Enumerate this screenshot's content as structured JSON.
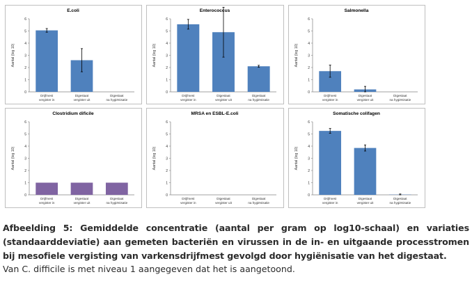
{
  "caption": {
    "main": "Afbeelding 5: Gemiddelde concentratie (aantal per gram op log10-schaal) en variaties (standaarddeviatie) aan gemeten bacteriën en virussen in de in- en uitgaande processtromen bij mesofiele vergisting van varkensdrijfmest gevolgd door hygiënisatie van het digestaat.",
    "note": "Van C. difficile is met niveau 1 aangegeven dat het is aangetoond."
  },
  "colors": {
    "bar_blue": "#4f81bd",
    "bar_purple": "#8064a2",
    "frame": "#bfbfbf",
    "axis": "#808080"
  },
  "chart_data": [
    {
      "type": "bar",
      "title": "E.coli",
      "ylabel": "Aantal (log 10)",
      "ylim": [
        0,
        6
      ],
      "yticks": [
        "0",
        "1",
        "2",
        "3",
        "4",
        "5",
        "6"
      ],
      "categories": [
        [
          "Drijfmest",
          "vergister in"
        ],
        [
          "Digestaat",
          "vergister uit"
        ],
        [
          "Digestaat",
          "na hygiënisatie"
        ]
      ],
      "values": [
        5.05,
        2.6,
        0
      ],
      "errors": [
        0.15,
        0.95,
        0
      ],
      "color": "#4f81bd"
    },
    {
      "type": "bar",
      "title": "Enterococcus",
      "ylabel": "Aantal (log 10)",
      "ylim": [
        0,
        6
      ],
      "yticks": [
        "0",
        "1",
        "2",
        "3",
        "4",
        "5",
        "6"
      ],
      "categories": [
        [
          "Drijfmest",
          "vergister in"
        ],
        [
          "Digestaat",
          "vergister uit"
        ],
        [
          "Digestaat",
          "na hygiënisatie"
        ]
      ],
      "values": [
        5.55,
        4.9,
        2.1
      ],
      "errors": [
        0.4,
        2.05,
        0.08
      ],
      "color": "#4f81bd"
    },
    {
      "type": "bar",
      "title": "Salmonella",
      "ylabel": "Aantal (log 10)",
      "ylim": [
        0,
        6
      ],
      "yticks": [
        "0",
        "1",
        "2",
        "3",
        "4",
        "5",
        "6"
      ],
      "categories": [
        [
          "Drijfmest",
          "vergister in"
        ],
        [
          "Digestaat",
          "vergister uit"
        ],
        [
          "Digestaat",
          "na hygiënisatie"
        ]
      ],
      "values": [
        1.7,
        0.2,
        0
      ],
      "errors": [
        0.5,
        0.25,
        0
      ],
      "color": "#4f81bd"
    },
    {
      "type": "bar",
      "title": "Clostridium dificile",
      "ylabel": "Aantal (log 10)",
      "ylim": [
        0,
        6
      ],
      "yticks": [
        "0",
        "1",
        "2",
        "3",
        "4",
        "5",
        "6"
      ],
      "categories": [
        [
          "Drijfmest",
          "vergister in"
        ],
        [
          "Digestaat",
          "vergister uit"
        ],
        [
          "Digestaat",
          "na hygiënisatie"
        ]
      ],
      "values": [
        1,
        1,
        1
      ],
      "errors": [
        0,
        0,
        0
      ],
      "color": "#8064a2"
    },
    {
      "type": "bar",
      "title": "MRSA en ESBL-E.coli",
      "ylabel": "Aantal (log 10)",
      "ylim": [
        0,
        6
      ],
      "yticks": [
        "0",
        "1",
        "2",
        "3",
        "4",
        "5",
        "6"
      ],
      "categories": [
        [
          "Drijfmest",
          "vergister in"
        ],
        [
          "Digestaat",
          "vergister uit"
        ],
        [
          "Digestaat",
          "na hygiënisatie"
        ]
      ],
      "values": [
        0,
        0,
        0
      ],
      "errors": [
        0,
        0,
        0
      ],
      "color": "#4f81bd"
    },
    {
      "type": "bar",
      "title": "Somatische colifagen",
      "ylabel": "Aantal (log 10)",
      "ylim": [
        0,
        6
      ],
      "yticks": [
        "0",
        "1",
        "2",
        "3",
        "4",
        "5",
        "6"
      ],
      "categories": [
        [
          "Drijfmest",
          "vergister in"
        ],
        [
          "Digestaat",
          "vergister uit"
        ],
        [
          "Digestaat",
          "na hygiënisatie"
        ]
      ],
      "values": [
        5.25,
        3.85,
        0.02
      ],
      "errors": [
        0.2,
        0.25,
        0.05
      ],
      "color": "#4f81bd"
    }
  ]
}
